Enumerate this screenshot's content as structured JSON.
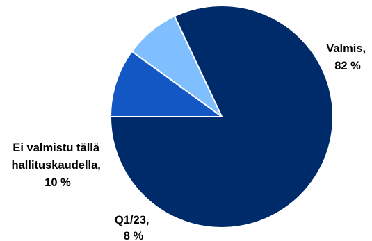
{
  "chart_data": {
    "type": "pie",
    "start_angle_deg": 180,
    "direction": "counterclockwise",
    "slices": [
      {
        "label_lines": [
          "Valmis,",
          "82 %"
        ],
        "value": 82,
        "color": "#002b6b"
      },
      {
        "label_lines": [
          "Q1/23,",
          "8 %"
        ],
        "value": 8,
        "color": "#7fbfff"
      },
      {
        "label_lines": [
          "Ei valmistu tällä",
          "hallituskaudella,",
          "10 %"
        ],
        "value": 10,
        "color": "#1357c4"
      }
    ]
  }
}
